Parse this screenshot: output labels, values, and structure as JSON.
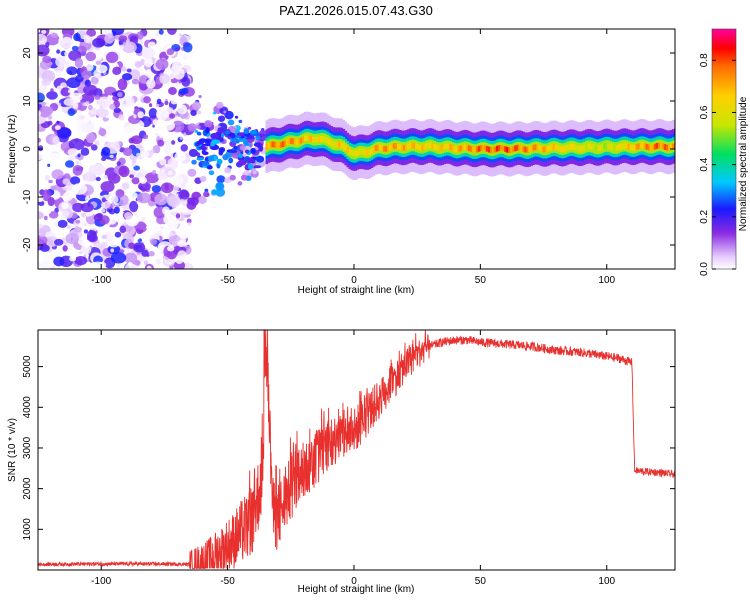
{
  "title": "PAZ1.2026.015.07.43.G30",
  "colors": {
    "snr_line": "#e8312e",
    "frame": "#000000"
  },
  "colorbar": {
    "label": "Normalized spectral amplitude",
    "ticks": [
      0.0,
      0.2,
      0.4,
      0.6,
      0.8
    ],
    "tick_labels": [
      "0.0",
      "0.2",
      "0.4",
      "0.6",
      "0.8"
    ],
    "range": [
      0,
      0.92
    ]
  },
  "chart_data": [
    {
      "type": "heatmap",
      "name": "spectrogram",
      "xlabel": "Height of straight line (km)",
      "ylabel": "Frequency (Hz)",
      "xlim": [
        -125,
        127
      ],
      "ylim": [
        -25,
        25
      ],
      "xticks": [
        -100,
        -50,
        0,
        50,
        100
      ],
      "xtick_labels": [
        "-100",
        "-50",
        "0",
        "50",
        "100"
      ],
      "yticks": [
        -20,
        -10,
        0,
        10,
        20
      ],
      "ytick_labels": [
        "-20",
        "-10",
        "0",
        "10",
        "20"
      ],
      "noise_region_km": [
        -125,
        -65
      ],
      "transition_region_km": [
        -65,
        -35
      ],
      "ridge": {
        "x": [
          -35,
          -30,
          -25,
          -20,
          -15,
          -10,
          -5,
          0,
          5,
          10,
          20,
          30,
          40,
          50,
          60,
          70,
          80,
          90,
          100,
          110,
          120,
          127
        ],
        "freq": [
          0.5,
          1.0,
          1.5,
          2.0,
          2.2,
          1.5,
          0.5,
          -1.0,
          -0.5,
          0.2,
          0.5,
          0.5,
          0.2,
          0.0,
          0.0,
          0.1,
          0.2,
          0.3,
          0.4,
          0.5,
          0.5,
          0.5
        ],
        "amplitude": [
          0.85,
          0.88,
          0.85,
          0.8,
          0.75,
          0.7,
          0.8,
          0.7,
          0.75,
          0.85,
          0.8,
          0.75,
          0.8,
          0.9,
          0.92,
          0.85,
          0.75,
          0.7,
          0.65,
          0.8,
          0.9,
          0.85
        ]
      }
    },
    {
      "type": "line",
      "name": "snr",
      "xlabel": "Height of straight line (km)",
      "ylabel": "SNR (10 * v/v)",
      "xlim": [
        -125,
        127
      ],
      "ylim": [
        0,
        5900
      ],
      "xticks": [
        -100,
        -50,
        0,
        50,
        100
      ],
      "xtick_labels": [
        "-100",
        "-50",
        "0",
        "50",
        "100"
      ],
      "yticks": [
        1000,
        2000,
        3000,
        4000,
        5000
      ],
      "ytick_labels": [
        "1000",
        "2000",
        "3000",
        "4000",
        "5000"
      ],
      "x": [
        -125,
        -100,
        -80,
        -65,
        -58,
        -52,
        -48,
        -45,
        -42,
        -40,
        -38,
        -36,
        -35,
        -32,
        -30,
        -28,
        -25,
        -20,
        -15,
        -10,
        -5,
        0,
        5,
        10,
        15,
        20,
        25,
        30,
        35,
        40,
        45,
        50,
        60,
        70,
        80,
        90,
        100,
        105,
        110,
        111,
        115,
        120,
        127
      ],
      "y": [
        140,
        150,
        150,
        140,
        250,
        500,
        700,
        900,
        1100,
        1300,
        1800,
        2500,
        5900,
        1400,
        1300,
        1600,
        2000,
        2400,
        2800,
        3100,
        3300,
        3400,
        3800,
        4200,
        4600,
        5000,
        5300,
        5500,
        5600,
        5650,
        5650,
        5600,
        5550,
        5500,
        5400,
        5350,
        5250,
        5200,
        5100,
        2450,
        2420,
        2400,
        2350
      ]
    }
  ]
}
